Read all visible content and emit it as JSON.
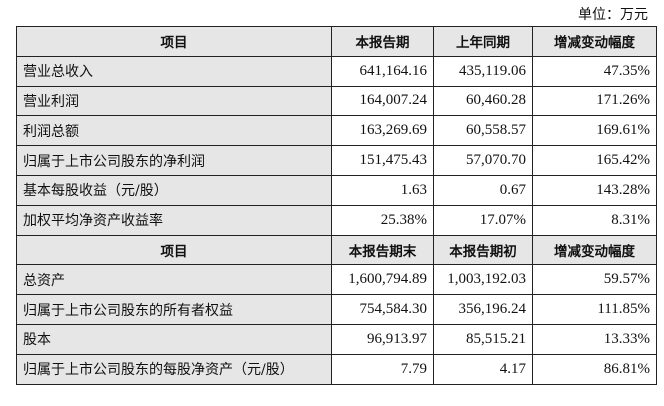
{
  "unit_label": "单位：万元",
  "section1": {
    "headers": [
      "项目",
      "本报告期",
      "上年同期",
      "增减变动幅度"
    ],
    "rows": [
      [
        "营业总收入",
        "641,164.16",
        "435,119.06",
        "47.35%"
      ],
      [
        "营业利润",
        "164,007.24",
        "60,460.28",
        "171.26%"
      ],
      [
        "利润总额",
        "163,269.69",
        "60,558.57",
        "169.61%"
      ],
      [
        "归属于上市公司股东的净利润",
        "151,475.43",
        "57,070.70",
        "165.42%"
      ],
      [
        "基本每股收益（元/股）",
        "1.63",
        "0.67",
        "143.28%"
      ],
      [
        "加权平均净资产收益率",
        "25.38%",
        "17.07%",
        "8.31%"
      ]
    ]
  },
  "section2": {
    "headers": [
      "项目",
      "本报告期末",
      "本报告期初",
      "增减变动幅度"
    ],
    "rows": [
      [
        "总资产",
        "1,600,794.89",
        "1,003,192.03",
        "59.57%"
      ],
      [
        "归属于上市公司股东的所有者权益",
        "754,584.30",
        "356,196.24",
        "111.85%"
      ],
      [
        "股本",
        "96,913.97",
        "85,515.21",
        "13.33%"
      ],
      [
        "归属于上市公司股东的每股净资产（元/股）",
        "7.79",
        "4.17",
        "86.81%"
      ]
    ]
  }
}
